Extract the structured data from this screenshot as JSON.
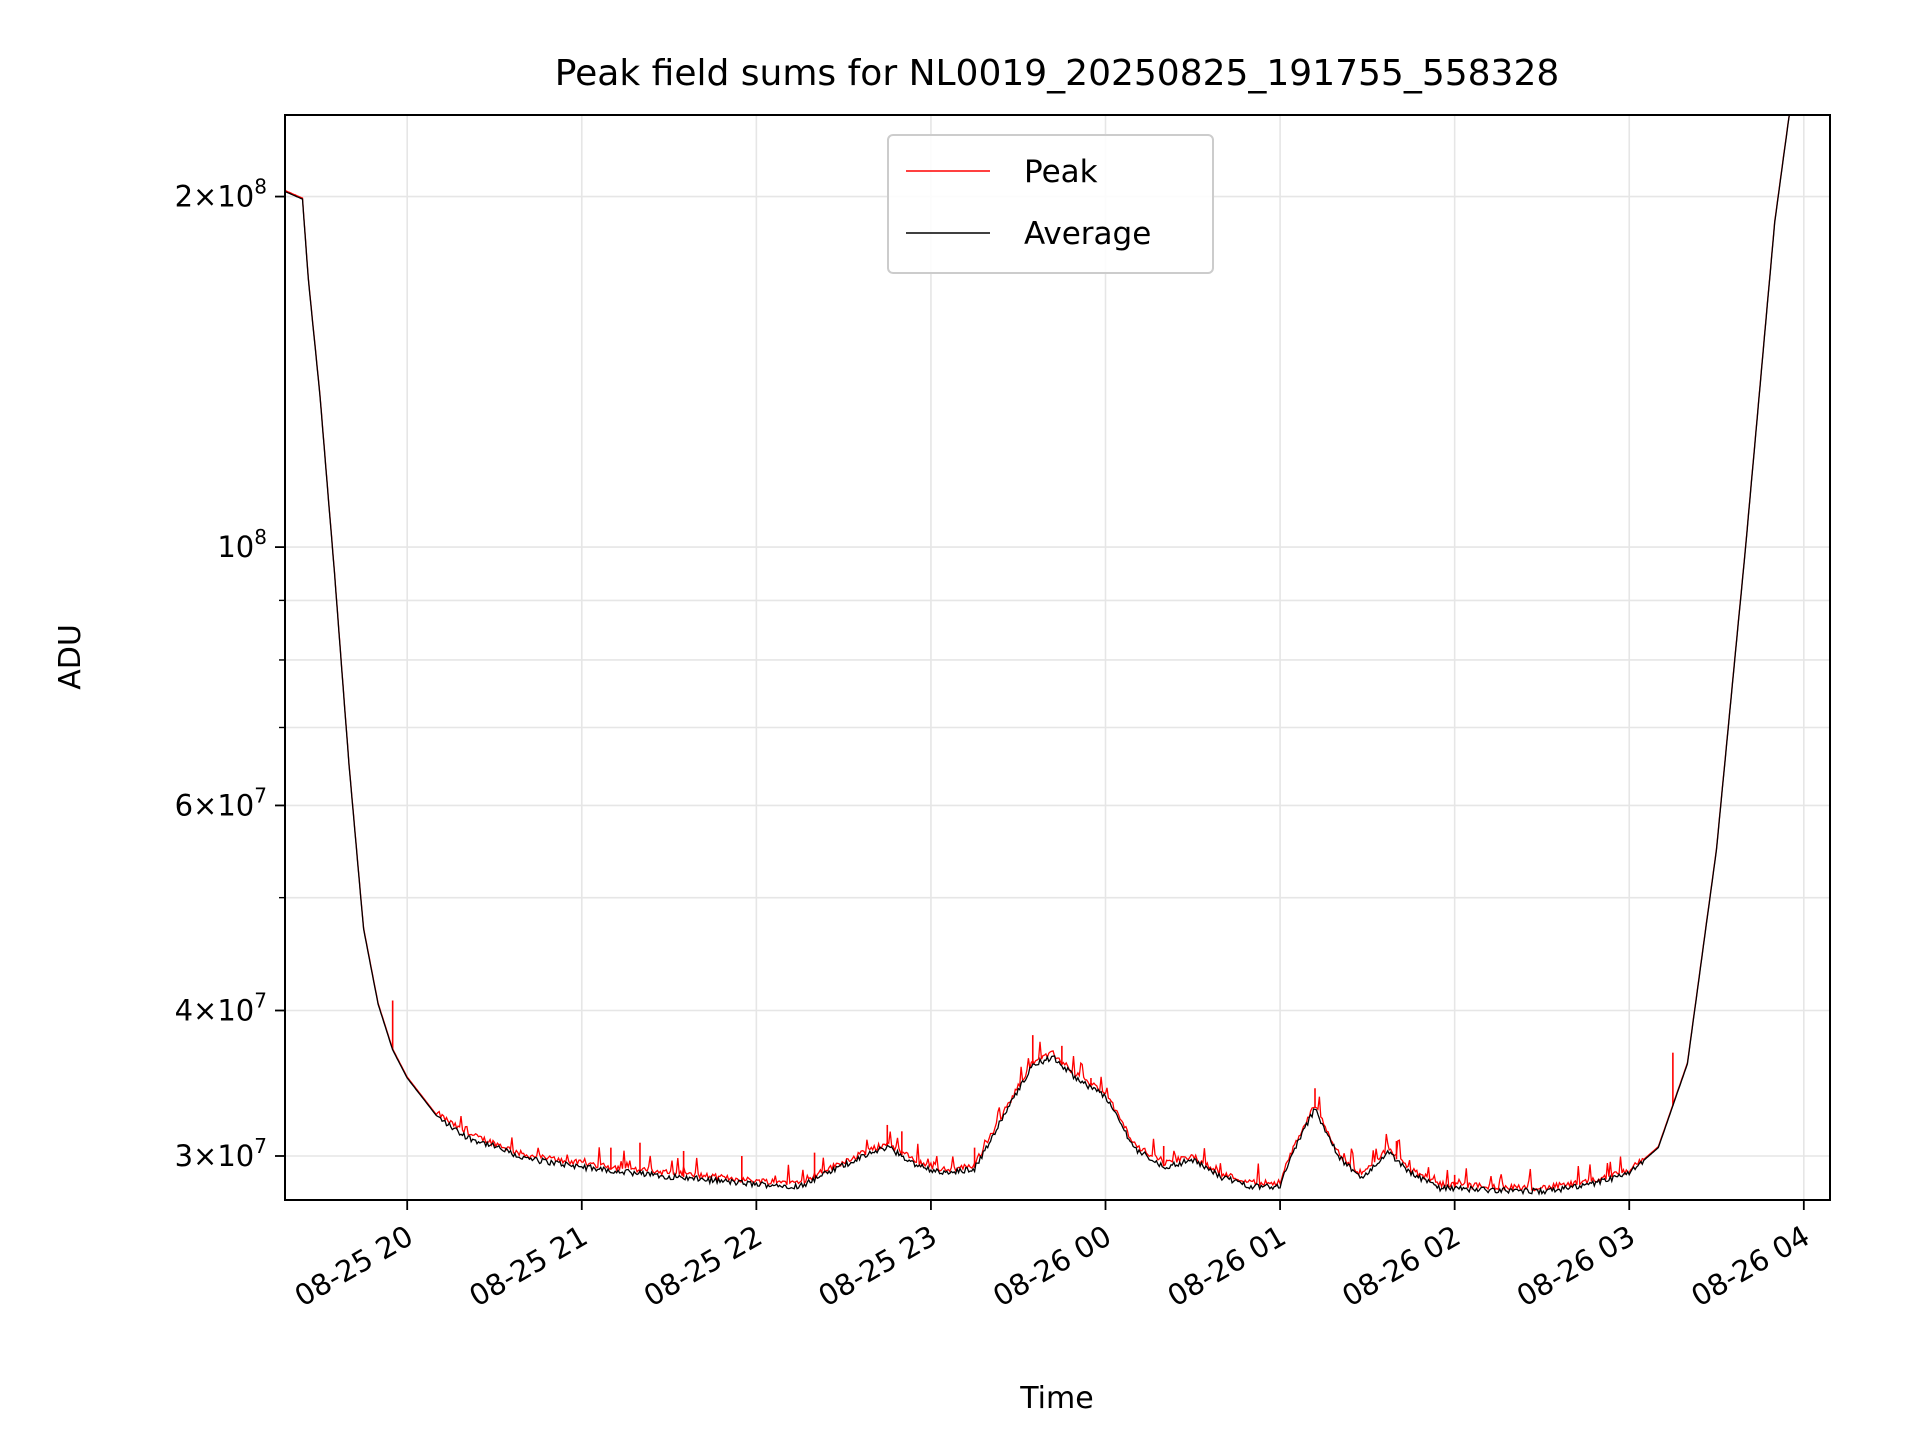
{
  "chart_data": {
    "type": "line",
    "title": "Peak field sums for NL0019_20250825_191755_558328",
    "xlabel": "Time",
    "ylabel": "ADU",
    "yscale": "log",
    "grid": true,
    "legend": "upper center",
    "xlim": [
      "2025-08-25 19:18",
      "2025-08-26 04:09"
    ],
    "ylim": [
      27500000,
      235000000
    ],
    "x_ticks": [
      {
        "value": "2025-08-25 20:00",
        "label": "08-25 20"
      },
      {
        "value": "2025-08-25 21:00",
        "label": "08-25 21"
      },
      {
        "value": "2025-08-25 22:00",
        "label": "08-25 22"
      },
      {
        "value": "2025-08-25 23:00",
        "label": "08-25 23"
      },
      {
        "value": "2025-08-26 00:00",
        "label": "08-26 00"
      },
      {
        "value": "2025-08-26 01:00",
        "label": "08-26 01"
      },
      {
        "value": "2025-08-26 02:00",
        "label": "08-26 02"
      },
      {
        "value": "2025-08-26 03:00",
        "label": "08-26 03"
      },
      {
        "value": "2025-08-26 04:00",
        "label": "08-26 04"
      }
    ],
    "y_ticks": [
      {
        "value": 30000000,
        "mant": "3",
        "exp": "7"
      },
      {
        "value": 40000000,
        "mant": "4",
        "exp": "7"
      },
      {
        "value": 60000000,
        "mant": "6",
        "exp": "7"
      },
      {
        "value": 100000000,
        "mant": "",
        "exp": "8"
      },
      {
        "value": 200000000,
        "mant": "2",
        "exp": "8"
      }
    ],
    "y_minor_ticks": [
      50000000,
      70000000,
      80000000,
      90000000
    ],
    "series": [
      {
        "name": "Peak",
        "color": "#ff0000"
      },
      {
        "name": "Average",
        "color": "#000000"
      }
    ],
    "average_points": [
      [
        "2025-08-25 19:18",
        202000000
      ],
      [
        "2025-08-25 19:24",
        199000000
      ],
      [
        "2025-08-25 19:26",
        170000000
      ],
      [
        "2025-08-25 19:30",
        135000000
      ],
      [
        "2025-08-25 19:35",
        95000000
      ],
      [
        "2025-08-25 19:40",
        65000000
      ],
      [
        "2025-08-25 19:45",
        47000000
      ],
      [
        "2025-08-25 19:50",
        40500000
      ],
      [
        "2025-08-25 19:55",
        37000000
      ],
      [
        "2025-08-25 20:00",
        35000000
      ],
      [
        "2025-08-25 20:10",
        32500000
      ],
      [
        "2025-08-25 20:20",
        31200000
      ],
      [
        "2025-08-25 20:30",
        30600000
      ],
      [
        "2025-08-25 20:40",
        29900000
      ],
      [
        "2025-08-25 21:00",
        29400000
      ],
      [
        "2025-08-25 21:20",
        29000000
      ],
      [
        "2025-08-25 21:40",
        28700000
      ],
      [
        "2025-08-25 22:00",
        28400000
      ],
      [
        "2025-08-25 22:15",
        28300000
      ],
      [
        "2025-08-25 22:30",
        29500000
      ],
      [
        "2025-08-25 22:45",
        30600000
      ],
      [
        "2025-08-25 22:55",
        29500000
      ],
      [
        "2025-08-25 23:05",
        29000000
      ],
      [
        "2025-08-25 23:15",
        29300000
      ],
      [
        "2025-08-25 23:25",
        32500000
      ],
      [
        "2025-08-25 23:35",
        36000000
      ],
      [
        "2025-08-25 23:42",
        36500000
      ],
      [
        "2025-08-25 23:50",
        35000000
      ],
      [
        "2025-08-26 00:00",
        33800000
      ],
      [
        "2025-08-26 00:10",
        30500000
      ],
      [
        "2025-08-26 00:20",
        29400000
      ],
      [
        "2025-08-26 00:30",
        29800000
      ],
      [
        "2025-08-26 00:40",
        28800000
      ],
      [
        "2025-08-26 00:50",
        28300000
      ],
      [
        "2025-08-26 01:00",
        28300000
      ],
      [
        "2025-08-26 01:05",
        30500000
      ],
      [
        "2025-08-26 01:12",
        33000000
      ],
      [
        "2025-08-26 01:20",
        30000000
      ],
      [
        "2025-08-26 01:28",
        28700000
      ],
      [
        "2025-08-26 01:37",
        30300000
      ],
      [
        "2025-08-26 01:45",
        29000000
      ],
      [
        "2025-08-26 01:55",
        28200000
      ],
      [
        "2025-08-26 02:10",
        28100000
      ],
      [
        "2025-08-26 02:30",
        28000000
      ],
      [
        "2025-08-26 02:45",
        28300000
      ],
      [
        "2025-08-26 03:00",
        29000000
      ],
      [
        "2025-08-26 03:10",
        30500000
      ],
      [
        "2025-08-26 03:20",
        36000000
      ],
      [
        "2025-08-26 03:30",
        55000000
      ],
      [
        "2025-08-26 03:40",
        100000000
      ],
      [
        "2025-08-26 03:50",
        190000000
      ],
      [
        "2025-08-26 03:55",
        235000000
      ]
    ],
    "peak_spikes": [
      [
        "2025-08-25 19:55",
        40800000
      ],
      [
        "2025-08-25 20:30",
        30700000
      ],
      [
        "2025-08-25 21:10",
        30500000
      ],
      [
        "2025-08-25 21:20",
        30800000
      ],
      [
        "2025-08-25 21:35",
        30300000
      ],
      [
        "2025-08-25 21:55",
        30000000
      ],
      [
        "2025-08-25 22:20",
        30200000
      ],
      [
        "2025-08-25 22:45",
        31900000
      ],
      [
        "2025-08-25 22:50",
        31500000
      ],
      [
        "2025-08-25 23:15",
        30500000
      ],
      [
        "2025-08-25 23:35",
        38100000
      ],
      [
        "2025-08-25 23:45",
        37300000
      ],
      [
        "2025-08-25 23:55",
        35000000
      ],
      [
        "2025-08-26 00:20",
        30600000
      ],
      [
        "2025-08-26 01:12",
        34300000
      ],
      [
        "2025-08-26 01:40",
        30900000
      ],
      [
        "2025-08-26 02:00",
        28900000
      ],
      [
        "2025-08-26 03:15",
        36800000
      ]
    ]
  }
}
